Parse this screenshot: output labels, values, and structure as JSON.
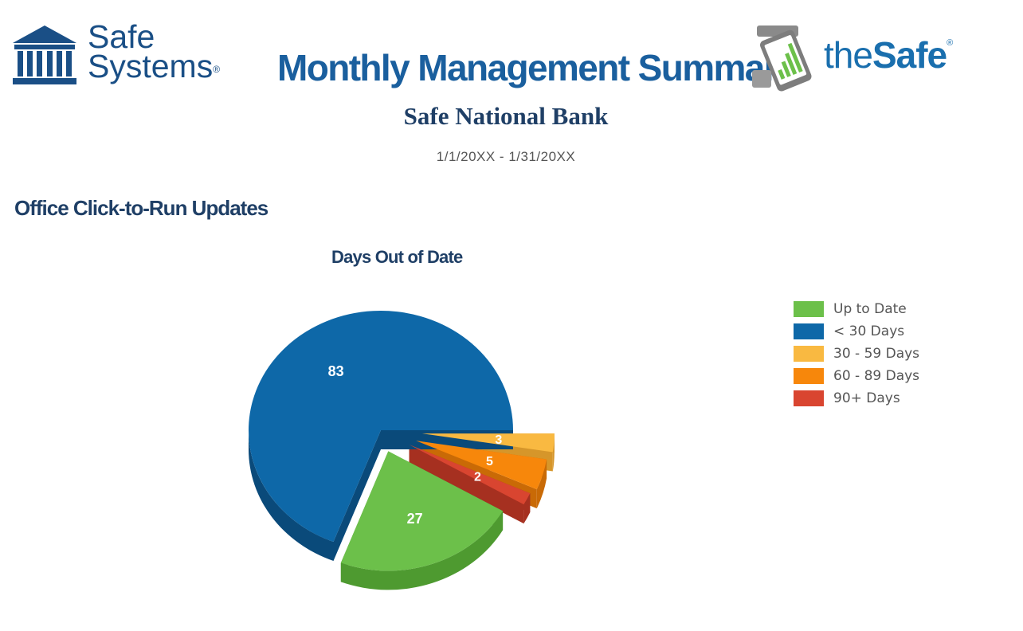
{
  "header": {
    "left_logo_line1": "Safe",
    "left_logo_line2": "Systems",
    "registered_mark": "®",
    "title": "Monthly Management Summary",
    "bank_name": "Safe National Bank",
    "date_range": "1/1/20XX - 1/31/20XX",
    "right_logo_prefix": "the",
    "right_logo_bold": "Safe"
  },
  "section": {
    "title": "Office Click-to-Run Updates"
  },
  "colors": {
    "brand_blue": "#1a5f9e",
    "navy": "#1f3f66"
  },
  "chart_data": {
    "type": "pie",
    "title": "Days Out of Date",
    "categories": [
      "Up to Date",
      "< 30 Days",
      "30 - 59 Days",
      "60 - 89 Days",
      "90+ Days"
    ],
    "values": [
      27,
      83,
      3,
      5,
      2
    ],
    "colors": [
      "#6cc04a",
      "#0e68a8",
      "#f9b941",
      "#f7870b",
      "#d94530"
    ],
    "side_colors": [
      "#4e9a30",
      "#0a4a7a",
      "#d6962a",
      "#c96a06",
      "#a63020"
    ],
    "exploded": [
      "Up to Date",
      "30 - 59 Days",
      "60 - 89 Days",
      "90+ Days"
    ],
    "legend_position": "right"
  }
}
